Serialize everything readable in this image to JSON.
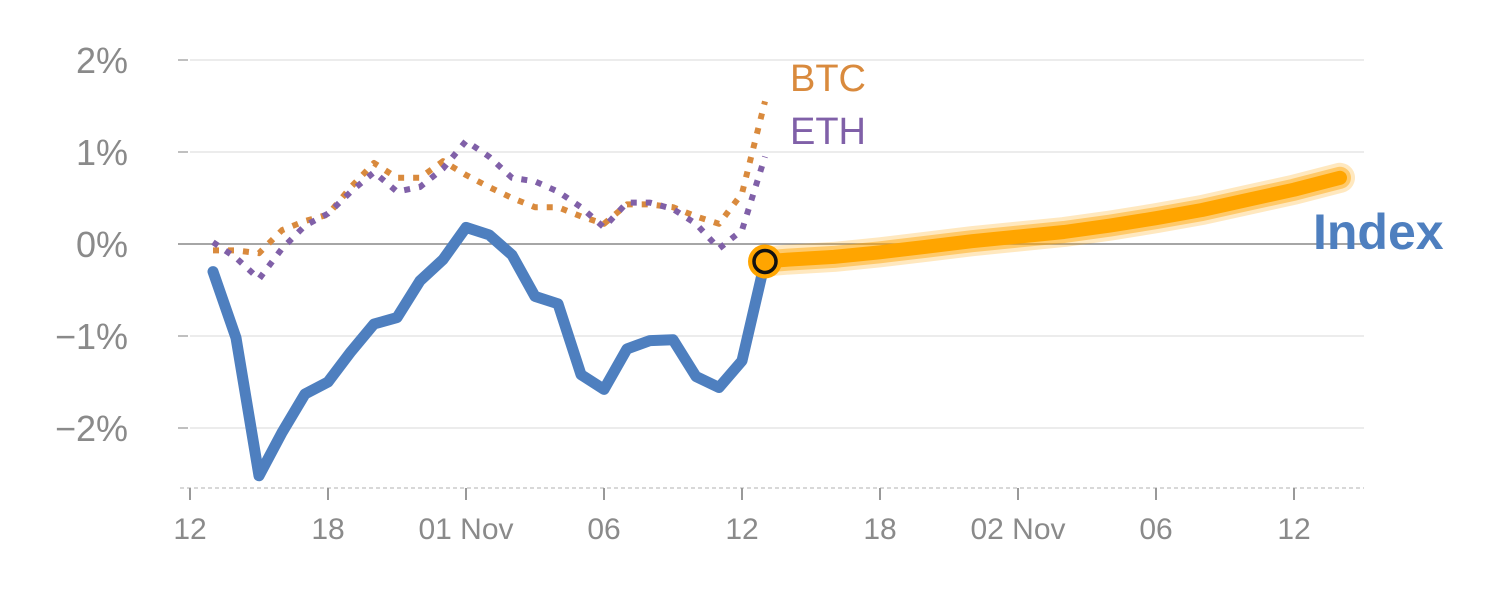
{
  "chart_data": {
    "type": "line",
    "title": "",
    "xlabel": "",
    "ylabel": "",
    "y_unit": "%",
    "ylim": [
      -2.65,
      2.1
    ],
    "y_ticks": [
      2,
      1,
      0,
      -1,
      -2
    ],
    "y_tick_labels": [
      "2%",
      "1%",
      "0%",
      "−1%",
      "−2%"
    ],
    "x_ticks": [
      0,
      6,
      12,
      18,
      24,
      30,
      36,
      42,
      48
    ],
    "x_tick_labels": [
      "12",
      "18",
      "01 Nov",
      "06",
      "12",
      "18",
      "02 Nov",
      "06",
      "12"
    ],
    "xlim": [
      0,
      51
    ],
    "grid": true,
    "zero_line": true,
    "colors": {
      "index": "#4e7fbf",
      "btc": "#d98a3d",
      "eth": "#8060a8",
      "forecast": "#ffa500",
      "grid": "#e6e6e6",
      "zero": "#888888",
      "tick": "#8a8a8a"
    },
    "series": [
      {
        "name": "Index",
        "style": "solid",
        "x": [
          1,
          2,
          3,
          4,
          5,
          6,
          7,
          8,
          9,
          10,
          11,
          12,
          13,
          14,
          15,
          16,
          17,
          18,
          19,
          20,
          21,
          22,
          23,
          24,
          25
        ],
        "y": [
          -0.3,
          -1.02,
          -2.52,
          -2.05,
          -1.63,
          -1.5,
          -1.17,
          -0.87,
          -0.8,
          -0.4,
          -0.17,
          0.18,
          0.1,
          -0.12,
          -0.57,
          -0.65,
          -1.42,
          -1.58,
          -1.14,
          -1.05,
          -1.04,
          -1.44,
          -1.56,
          -1.27,
          -0.19
        ]
      },
      {
        "name": "BTC",
        "style": "dotted",
        "x": [
          1,
          2,
          3,
          4,
          5,
          6,
          7,
          8,
          9,
          10,
          11,
          12,
          13,
          14,
          15,
          16,
          17,
          18,
          19,
          20,
          21,
          22,
          23,
          24,
          25
        ],
        "y": [
          -0.07,
          -0.07,
          -0.1,
          0.15,
          0.25,
          0.32,
          0.62,
          0.88,
          0.72,
          0.72,
          0.9,
          0.75,
          0.62,
          0.5,
          0.4,
          0.4,
          0.3,
          0.22,
          0.43,
          0.43,
          0.4,
          0.3,
          0.22,
          0.55,
          1.55
        ]
      },
      {
        "name": "ETH",
        "style": "dotted",
        "x": [
          1,
          2,
          3,
          4,
          5,
          6,
          7,
          8,
          9,
          10,
          11,
          12,
          13,
          14,
          15,
          16,
          17,
          18,
          19,
          20,
          21,
          22,
          23,
          24,
          25
        ],
        "y": [
          0.02,
          -0.15,
          -0.38,
          -0.05,
          0.2,
          0.33,
          0.57,
          0.78,
          0.57,
          0.62,
          0.82,
          1.12,
          0.95,
          0.72,
          0.68,
          0.57,
          0.4,
          0.18,
          0.45,
          0.45,
          0.38,
          0.22,
          -0.05,
          0.15,
          0.95
        ]
      },
      {
        "name": "forecast",
        "style": "band",
        "x": [
          25,
          26,
          28,
          30,
          32,
          34,
          36,
          38,
          40,
          42,
          44,
          46,
          48,
          50
        ],
        "y": [
          -0.19,
          -0.17,
          -0.14,
          -0.09,
          -0.03,
          0.03,
          0.08,
          0.13,
          0.2,
          0.28,
          0.37,
          0.48,
          0.59,
          0.72
        ]
      }
    ],
    "marker": {
      "x": 25,
      "y": -0.19
    },
    "labels": {
      "btc": "BTC",
      "eth": "ETH",
      "index": "Index"
    }
  }
}
